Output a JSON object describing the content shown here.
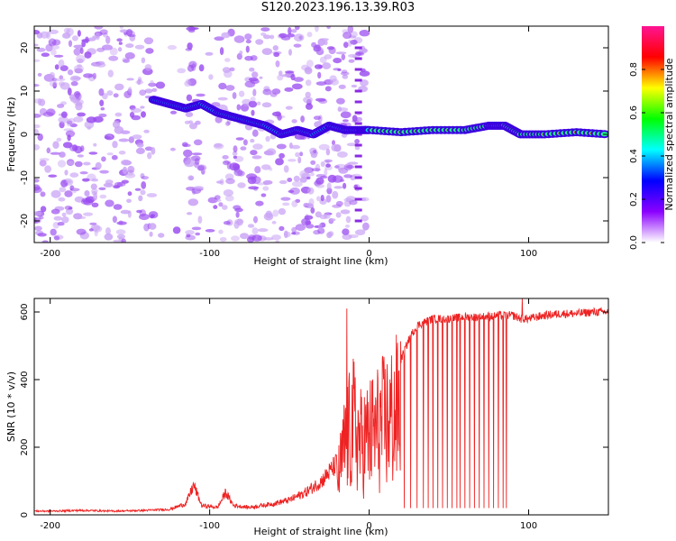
{
  "title": "S120.2023.196.13.39.R03",
  "chart_data": [
    {
      "type": "heatmap",
      "xlabel": "Height of straight line (km)",
      "ylabel": "Frequency (Hz)",
      "xlim": [
        -210,
        150
      ],
      "ylim": [
        -25,
        25
      ],
      "x_ticks": [
        -200,
        -100,
        0,
        100
      ],
      "y_ticks": [
        -20,
        -10,
        0,
        10,
        20
      ],
      "colorbar": {
        "label": "Normalized spectral amplitude",
        "range": [
          0,
          1
        ],
        "ticks": [
          0.0,
          0.2,
          0.4,
          0.6,
          0.8
        ],
        "colors": [
          "#ffffff",
          "#8b00ff",
          "#0000ff",
          "#00ffff",
          "#00ff00",
          "#ffff00",
          "#ff0000",
          "#ff1493"
        ]
      },
      "dominant_ridge": {
        "x": [
          -135,
          -125,
          -115,
          -105,
          -95,
          -85,
          -75,
          -65,
          -55,
          -45,
          -35,
          -25,
          -15,
          -5,
          0,
          20,
          40,
          60,
          75,
          85,
          95,
          110,
          130,
          150
        ],
        "frequency": [
          8,
          7,
          6,
          7,
          5,
          4,
          3,
          2,
          0,
          1,
          0,
          2,
          1,
          1,
          1,
          0.5,
          1,
          1,
          2,
          2,
          0,
          0,
          0.5,
          0
        ]
      }
    },
    {
      "type": "line",
      "xlabel": "Height of straight line (km)",
      "ylabel": "SNR (10 * v/v)",
      "xlim": [
        -210,
        150
      ],
      "ylim": [
        0,
        640
      ],
      "x_ticks": [
        -200,
        -100,
        0,
        100
      ],
      "y_ticks": [
        0,
        200,
        400,
        600
      ],
      "color": "#ee2222",
      "series": [
        {
          "x": [
            -210,
            -200,
            -180,
            -160,
            -140,
            -125,
            -115,
            -110,
            -105,
            -95,
            -90,
            -85,
            -75,
            -60,
            -50,
            -40,
            -30,
            -20,
            -15,
            -10,
            -5,
            0,
            5,
            10,
            15,
            20,
            25,
            30,
            40,
            50,
            60,
            70,
            80,
            90,
            95,
            100,
            110,
            120,
            130,
            140,
            150
          ],
          "values": [
            10,
            10,
            12,
            10,
            12,
            15,
            30,
            80,
            25,
            20,
            60,
            25,
            20,
            30,
            40,
            60,
            90,
            140,
            300,
            380,
            300,
            330,
            360,
            390,
            410,
            460,
            520,
            560,
            580,
            580,
            585,
            585,
            590,
            590,
            580,
            580,
            590,
            595,
            595,
            600,
            600
          ]
        }
      ],
      "dropouts_x": [
        22,
        26,
        30,
        34,
        37,
        40,
        43,
        46,
        49,
        52,
        55,
        57,
        60,
        63,
        66,
        69,
        72,
        75,
        78,
        81,
        84,
        86,
        96
      ],
      "spikes": [
        {
          "x": -14,
          "value": 610
        },
        {
          "x": 96,
          "value": 640
        }
      ]
    }
  ]
}
